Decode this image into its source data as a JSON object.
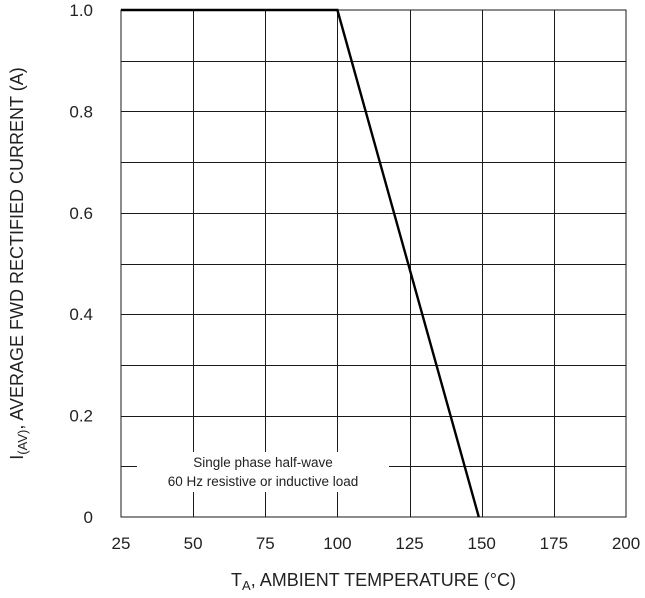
{
  "chart_data": {
    "type": "line",
    "xlabel": {
      "main": "T",
      "sub": "A",
      "rest": ", AMBIENT TEMPERATURE (°C)"
    },
    "ylabel": {
      "main": "I",
      "sub": "(AV)",
      "rest": ", AVERAGE FWD RECTIFIED CURRENT (A)"
    },
    "xlim": [
      25,
      200
    ],
    "ylim": [
      0,
      1.0
    ],
    "xticks": [
      25,
      50,
      75,
      100,
      125,
      150,
      175,
      200
    ],
    "xtick_labels": [
      "25",
      "50",
      "75",
      "100",
      "125",
      "150",
      "175",
      "200"
    ],
    "yticks": [
      0,
      0.2,
      0.4,
      0.6,
      0.8,
      1.0
    ],
    "ytick_labels": [
      "0",
      "0.2",
      "0.4",
      "0.6",
      "0.8",
      "1.0"
    ],
    "grid": true,
    "grid_minor": {
      "x_step": 25,
      "y_step": 0.1
    },
    "series": [
      {
        "x": [
          25,
          100,
          149
        ],
        "y": [
          1.0,
          1.0,
          0
        ]
      }
    ],
    "annotations": [
      "Single phase half-wave",
      "60 Hz resistive or inductive load"
    ]
  }
}
